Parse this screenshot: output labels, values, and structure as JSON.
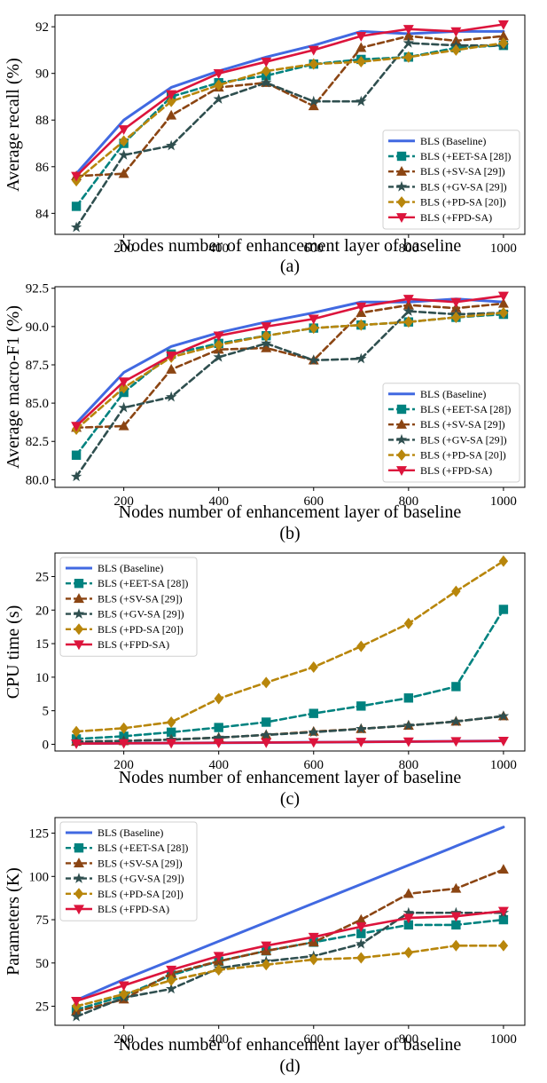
{
  "colors": {
    "baseline": "#4169e1",
    "eet": "#00827f",
    "sv": "#8b4513",
    "gv": "#2f4f4f",
    "pd": "#b8860b",
    "fpd": "#dc143c"
  },
  "chart_data": [
    {
      "type": "line",
      "caption": "(a)",
      "xlabel": "Nodes number of enhancement layer of baseline",
      "ylabel": "Average recall (%)",
      "x": [
        100,
        200,
        300,
        400,
        500,
        600,
        700,
        800,
        900,
        1000
      ],
      "xlim": [
        55,
        1045
      ],
      "ylim": [
        83.1,
        92.5
      ],
      "xticks": [
        200,
        400,
        600,
        800,
        1000
      ],
      "yticks": [
        84,
        86,
        88,
        90,
        92
      ],
      "tick_decimals": 0,
      "legend_position": "lower-right",
      "grid": false,
      "series": [
        {
          "name": "BLS (Baseline)",
          "key": "baseline",
          "marker": "none",
          "dash": false,
          "values": [
            85.7,
            88.0,
            89.4,
            90.1,
            90.7,
            91.2,
            91.8,
            91.7,
            91.8,
            91.8
          ]
        },
        {
          "name": "BLS (+EET-SA [28])",
          "key": "eet",
          "marker": "square",
          "dash": true,
          "values": [
            84.3,
            87.0,
            89.0,
            89.6,
            89.9,
            90.4,
            90.6,
            90.7,
            91.1,
            91.2
          ]
        },
        {
          "name": "BLS (+SV-SA [29])",
          "key": "sv",
          "marker": "triangle-up",
          "dash": true,
          "values": [
            85.6,
            85.7,
            88.2,
            89.4,
            89.6,
            88.6,
            91.1,
            91.6,
            91.4,
            91.6
          ]
        },
        {
          "name": "BLS (+GV-SA [29])",
          "key": "gv",
          "marker": "star",
          "dash": true,
          "values": [
            83.4,
            86.5,
            86.9,
            88.9,
            89.6,
            88.8,
            88.8,
            91.3,
            91.2,
            91.2
          ]
        },
        {
          "name": "BLS (+PD-SA [20])",
          "key": "pd",
          "marker": "diamond",
          "dash": true,
          "values": [
            85.4,
            87.1,
            88.8,
            89.5,
            90.1,
            90.4,
            90.5,
            90.7,
            91.0,
            91.3
          ]
        },
        {
          "name": "BLS (+FPD-SA)",
          "key": "fpd",
          "marker": "triangle-down",
          "dash": false,
          "values": [
            85.6,
            87.6,
            89.1,
            90.0,
            90.5,
            91.0,
            91.6,
            91.9,
            91.8,
            92.1
          ]
        }
      ]
    },
    {
      "type": "line",
      "caption": "(b)",
      "xlabel": "Nodes number of enhancement layer of baseline",
      "ylabel": "Average macro-F1 (%)",
      "x": [
        100,
        200,
        300,
        400,
        500,
        600,
        700,
        800,
        900,
        1000
      ],
      "xlim": [
        55,
        1045
      ],
      "ylim": [
        79.5,
        92.6
      ],
      "xticks": [
        200,
        400,
        600,
        800,
        1000
      ],
      "yticks": [
        80.0,
        82.5,
        85.0,
        87.5,
        90.0,
        92.5
      ],
      "tick_decimals": 1,
      "legend_position": "lower-right",
      "grid": false,
      "series": [
        {
          "name": "BLS (Baseline)",
          "key": "baseline",
          "marker": "none",
          "dash": false,
          "values": [
            83.7,
            87.0,
            88.7,
            89.6,
            90.3,
            90.9,
            91.6,
            91.6,
            91.8,
            91.6
          ]
        },
        {
          "name": "BLS (+EET-SA [28])",
          "key": "eet",
          "marker": "square",
          "dash": true,
          "values": [
            81.6,
            85.7,
            88.2,
            88.9,
            89.4,
            89.9,
            90.1,
            90.3,
            90.6,
            90.8
          ]
        },
        {
          "name": "BLS (+SV-SA [29])",
          "key": "sv",
          "marker": "triangle-up",
          "dash": true,
          "values": [
            83.4,
            83.5,
            87.2,
            88.5,
            88.6,
            87.8,
            90.9,
            91.4,
            91.2,
            91.5
          ]
        },
        {
          "name": "BLS (+GV-SA [29])",
          "key": "gv",
          "marker": "star",
          "dash": true,
          "values": [
            80.2,
            84.7,
            85.4,
            88.0,
            88.9,
            87.8,
            87.9,
            91.0,
            90.8,
            90.9
          ]
        },
        {
          "name": "BLS (+PD-SA [20])",
          "key": "pd",
          "marker": "diamond",
          "dash": true,
          "values": [
            83.3,
            86.0,
            88.0,
            88.8,
            89.4,
            89.9,
            90.1,
            90.3,
            90.6,
            90.9
          ]
        },
        {
          "name": "BLS (+FPD-SA)",
          "key": "fpd",
          "marker": "triangle-down",
          "dash": false,
          "values": [
            83.5,
            86.4,
            88.1,
            89.4,
            90.0,
            90.5,
            91.3,
            91.8,
            91.6,
            92.0
          ]
        }
      ]
    },
    {
      "type": "line",
      "caption": "(c)",
      "xlabel": "Nodes number of enhancement layer of baseline",
      "ylabel": "CPU time (s)",
      "x": [
        100,
        200,
        300,
        400,
        500,
        600,
        700,
        800,
        900,
        1000
      ],
      "xlim": [
        55,
        1045
      ],
      "ylim": [
        -1.0,
        28.5
      ],
      "xticks": [
        200,
        400,
        600,
        800,
        1000
      ],
      "yticks": [
        0,
        5,
        10,
        15,
        20,
        25
      ],
      "tick_decimals": 0,
      "legend_position": "upper-left",
      "grid": false,
      "series": [
        {
          "name": "BLS (Baseline)",
          "key": "baseline",
          "marker": "none",
          "dash": false,
          "values": [
            0.1,
            0.15,
            0.18,
            0.22,
            0.26,
            0.3,
            0.35,
            0.4,
            0.45,
            0.5
          ]
        },
        {
          "name": "BLS (+EET-SA [28])",
          "key": "eet",
          "marker": "square",
          "dash": true,
          "values": [
            0.8,
            1.2,
            1.8,
            2.5,
            3.3,
            4.6,
            5.7,
            6.9,
            8.6,
            20.1
          ]
        },
        {
          "name": "BLS (+SV-SA [29])",
          "key": "sv",
          "marker": "triangle-up",
          "dash": true,
          "values": [
            0.4,
            0.5,
            0.7,
            1.0,
            1.4,
            1.9,
            2.3,
            2.8,
            3.4,
            4.2
          ]
        },
        {
          "name": "BLS (+GV-SA [29])",
          "key": "gv",
          "marker": "star",
          "dash": true,
          "values": [
            0.4,
            0.5,
            0.7,
            1.0,
            1.4,
            1.8,
            2.3,
            2.8,
            3.4,
            4.2
          ]
        },
        {
          "name": "BLS (+PD-SA [20])",
          "key": "pd",
          "marker": "diamond",
          "dash": true,
          "values": [
            1.9,
            2.4,
            3.3,
            6.8,
            9.2,
            11.5,
            14.6,
            18.0,
            22.8,
            27.3
          ]
        },
        {
          "name": "BLS (+FPD-SA)",
          "key": "fpd",
          "marker": "triangle-down",
          "dash": false,
          "values": [
            0.1,
            0.15,
            0.18,
            0.22,
            0.26,
            0.3,
            0.35,
            0.4,
            0.45,
            0.5
          ]
        }
      ]
    },
    {
      "type": "line",
      "caption": "(d)",
      "xlabel": "Nodes number of enhancement layer of baseline",
      "ylabel": "Parameters (K)",
      "x": [
        100,
        200,
        300,
        400,
        500,
        600,
        700,
        800,
        900,
        1000
      ],
      "xlim": [
        55,
        1045
      ],
      "ylim": [
        14,
        134
      ],
      "xticks": [
        200,
        400,
        600,
        800,
        1000
      ],
      "yticks": [
        25,
        50,
        75,
        100,
        125
      ],
      "tick_decimals": 0,
      "legend_position": "upper-left",
      "grid": false,
      "series": [
        {
          "name": "BLS (Baseline)",
          "key": "baseline",
          "marker": "none",
          "dash": false,
          "values": [
            28.5,
            40.5,
            51.5,
            62.5,
            73.5,
            84.5,
            95.5,
            106.5,
            117.5,
            128.5
          ]
        },
        {
          "name": "BLS (+EET-SA [28])",
          "key": "eet",
          "marker": "square",
          "dash": true,
          "values": [
            23,
            31,
            43,
            51,
            57,
            62,
            67,
            72,
            72,
            75
          ]
        },
        {
          "name": "BLS (+SV-SA [29])",
          "key": "sv",
          "marker": "triangle-up",
          "dash": true,
          "values": [
            22,
            29,
            44,
            51,
            57,
            62,
            75,
            90,
            93,
            104
          ]
        },
        {
          "name": "BLS (+GV-SA [29])",
          "key": "gv",
          "marker": "star",
          "dash": true,
          "values": [
            19,
            30,
            35,
            47,
            51,
            54,
            61,
            79,
            79,
            79
          ]
        },
        {
          "name": "BLS (+PD-SA [20])",
          "key": "pd",
          "marker": "diamond",
          "dash": true,
          "values": [
            25,
            32,
            40,
            46,
            49,
            52,
            53,
            56,
            60,
            60
          ]
        },
        {
          "name": "BLS (+FPD-SA)",
          "key": "fpd",
          "marker": "triangle-down",
          "dash": false,
          "values": [
            28,
            37,
            46,
            54,
            60,
            65,
            71,
            76,
            77,
            80
          ]
        }
      ]
    }
  ]
}
